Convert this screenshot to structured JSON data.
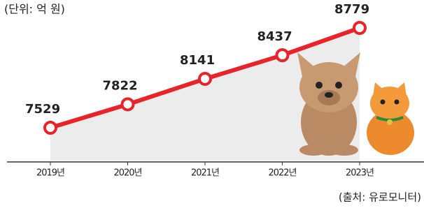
{
  "chart_data": {
    "type": "line",
    "subtitle": "(단위: 억 원)",
    "source": "(출처: 유로모니터)",
    "categories": [
      "2019년",
      "2020년",
      "2021년",
      "2022년",
      "2023년"
    ],
    "values": [
      7529,
      7822,
      8141,
      8437,
      8779
    ],
    "color": "#e8232a"
  }
}
